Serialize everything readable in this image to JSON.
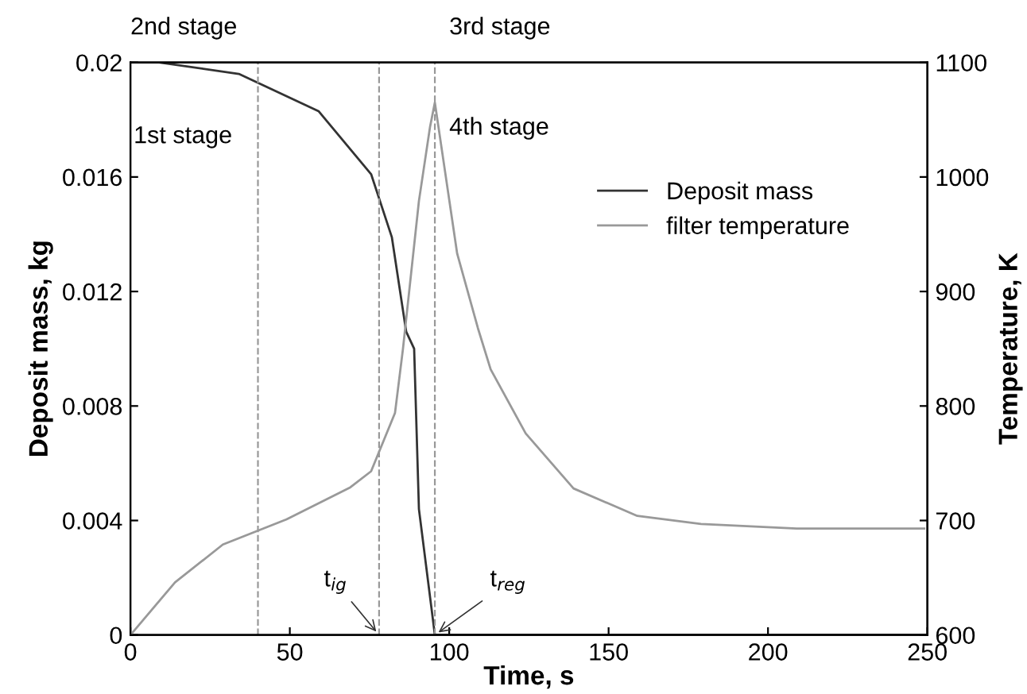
{
  "chart_data": {
    "type": "line",
    "xlabel": "Time, s",
    "ylabel": "Deposit mass, kg",
    "y2label": "Temperature, K",
    "xlim": [
      0,
      250
    ],
    "ylim": [
      0,
      0.02
    ],
    "y2lim": [
      600,
      1100
    ],
    "xticks": [
      0,
      50,
      100,
      150,
      200,
      250
    ],
    "yticks": [
      0,
      0.004,
      0.008,
      0.012,
      0.016,
      0.02
    ],
    "y2ticks": [
      600,
      700,
      800,
      900,
      1000,
      1100
    ],
    "series": [
      {
        "name": "Deposit mass",
        "color": "#333333",
        "x": [
          0,
          9,
          34,
          59,
          75.5,
          82,
          86.5,
          89,
          90.5,
          95.5,
          150,
          200,
          250
        ],
        "values": [
          0.02,
          0.02,
          0.0196,
          0.0183,
          0.0161,
          0.0139,
          0.0106,
          0.01,
          0.0044,
          0,
          0,
          0,
          0
        ]
      },
      {
        "name": "filter temperature",
        "color": "#999999",
        "axis": "y2",
        "x": [
          0,
          14,
          29,
          49,
          69,
          75.5,
          83,
          85.5,
          90.5,
          94,
          95.5,
          102.5,
          109,
          113,
          124,
          139,
          159,
          179,
          209,
          249
        ],
        "values": [
          600,
          646,
          679,
          701,
          729,
          743,
          794,
          850,
          979,
          1044,
          1065,
          933,
          868,
          832,
          776,
          728,
          704,
          697,
          693,
          693
        ]
      }
    ],
    "ref_lines": [
      {
        "axis": "x",
        "value": 40,
        "line_style": "dashed",
        "color": "#999999"
      },
      {
        "axis": "x",
        "value": 78,
        "line_style": "dashed",
        "color": "#999999"
      },
      {
        "axis": "x",
        "value": 95.5,
        "line_style": "dashed",
        "color": "#999999"
      }
    ],
    "annotations": [
      "2nd stage",
      "3rd stage",
      "1st stage",
      "4th stage",
      {
        "text": "t$_{ig}$",
        "x": 78,
        "y": 0
      },
      {
        "text": "t$_{reg}$",
        "x": 95.5,
        "y": 0
      }
    ],
    "legend": "top right",
    "grid": false
  }
}
